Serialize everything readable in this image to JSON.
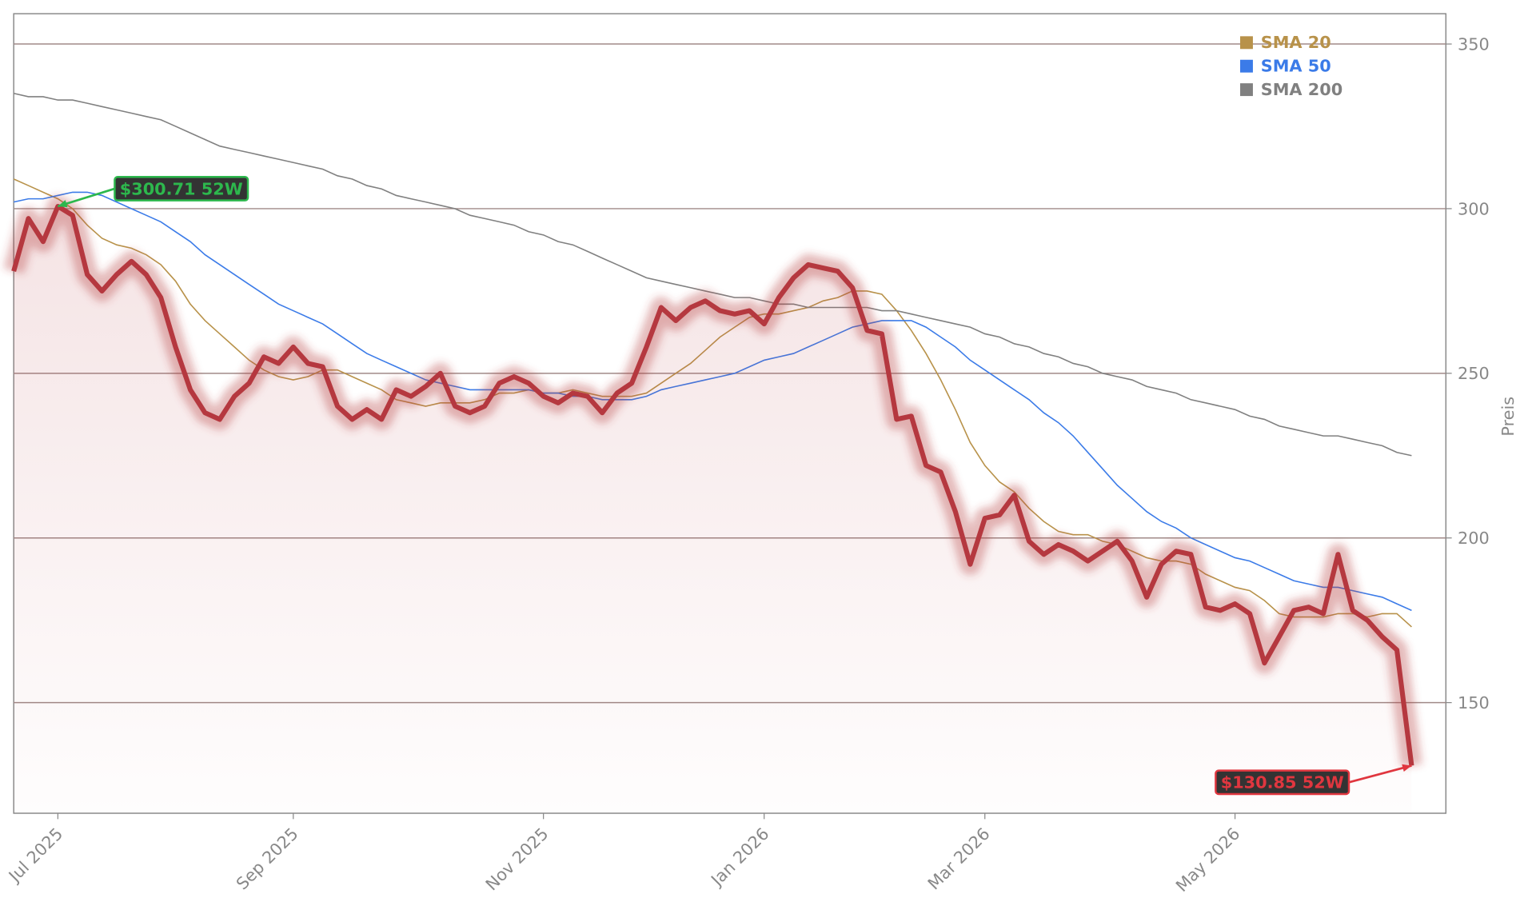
{
  "chart_data": {
    "type": "line",
    "y_label": "Preis",
    "ylim": [
      116.4,
      359.2
    ],
    "yticks": [
      150,
      200,
      250,
      300,
      350
    ],
    "grid": true,
    "legend": "upper-right",
    "categories": [
      null,
      null,
      null,
      "Jul 2025",
      null,
      null,
      null,
      null,
      null,
      null,
      null,
      null,
      null,
      null,
      null,
      null,
      null,
      null,
      null,
      "Sep 2025",
      null,
      null,
      null,
      null,
      null,
      null,
      null,
      null,
      null,
      null,
      null,
      null,
      null,
      null,
      null,
      null,
      "Nov 2025",
      null,
      null,
      null,
      null,
      null,
      null,
      null,
      null,
      null,
      null,
      null,
      null,
      null,
      null,
      "Jan 2026",
      null,
      null,
      null,
      null,
      null,
      null,
      null,
      null,
      null,
      null,
      null,
      null,
      null,
      null,
      "Mar 2026",
      null,
      null,
      null,
      null,
      null,
      null,
      null,
      null,
      null,
      null,
      null,
      null,
      null,
      null,
      null,
      null,
      "May 2026",
      null,
      null,
      null,
      null,
      null,
      null,
      null,
      null,
      null,
      null,
      null,
      null
    ],
    "series": [
      {
        "color": "#b5383f",
        "fill": true,
        "values": [
          281,
          297,
          290,
          300.71,
          298,
          280,
          275,
          280,
          284,
          280,
          273,
          258,
          245,
          238,
          236,
          243,
          247,
          255,
          253,
          258,
          253,
          252,
          240,
          236,
          239,
          236,
          245,
          243,
          246,
          250,
          240,
          238,
          240,
          247,
          249,
          247,
          243,
          241,
          244,
          243,
          238,
          244,
          247,
          258,
          270,
          266,
          270,
          272,
          269,
          268,
          269,
          265,
          273,
          279,
          283,
          282,
          281,
          276,
          263,
          262,
          236,
          237,
          222,
          220,
          208,
          192,
          206,
          207,
          213,
          199,
          195,
          198,
          196,
          193,
          196,
          199,
          193,
          182,
          192,
          196,
          195,
          179,
          178,
          180,
          177,
          162,
          170,
          178,
          179,
          177,
          195,
          178,
          175,
          170,
          166,
          130.85
        ]
      },
      {
        "name": "SMA 20",
        "color": "#b8924a",
        "values": [
          309,
          307,
          305,
          303,
          300,
          295,
          291,
          289,
          288,
          286,
          283,
          278,
          271,
          266,
          262,
          258,
          254,
          251,
          249,
          248,
          249,
          251,
          251,
          249,
          247,
          245,
          242,
          241,
          240,
          241,
          241,
          241,
          242,
          244,
          244,
          245,
          244,
          244,
          245,
          244,
          243,
          243,
          243,
          244,
          247,
          250,
          253,
          257,
          261,
          264,
          267,
          268,
          268,
          269,
          270,
          272,
          273,
          275,
          275,
          274,
          269,
          263,
          256,
          248,
          239,
          229,
          222,
          217,
          214,
          209,
          205,
          202,
          201,
          201,
          199,
          198,
          196,
          194,
          193,
          193,
          192,
          189,
          187,
          185,
          184,
          181,
          177,
          176,
          176,
          176,
          177,
          177,
          176,
          177,
          177,
          173
        ]
      },
      {
        "name": "SMA 50",
        "color": "#3b7be8",
        "values": [
          302,
          303,
          303,
          304,
          305,
          305,
          304,
          302,
          300,
          298,
          296,
          293,
          290,
          286,
          283,
          280,
          277,
          274,
          271,
          269,
          267,
          265,
          262,
          259,
          256,
          254,
          252,
          250,
          248,
          247,
          246,
          245,
          245,
          245,
          245,
          245,
          244,
          244,
          243,
          243,
          242,
          242,
          242,
          243,
          245,
          246,
          247,
          248,
          249,
          250,
          252,
          254,
          255,
          256,
          258,
          260,
          262,
          264,
          265,
          266,
          266,
          266,
          264,
          261,
          258,
          254,
          251,
          248,
          245,
          242,
          238,
          235,
          231,
          226,
          221,
          216,
          212,
          208,
          205,
          203,
          200,
          198,
          196,
          194,
          193,
          191,
          189,
          187,
          186,
          185,
          185,
          184,
          183,
          182,
          180,
          178
        ]
      },
      {
        "name": "SMA 200",
        "color": "#808080",
        "values": [
          335,
          334,
          334,
          333,
          333,
          332,
          331,
          330,
          329,
          328,
          327,
          325,
          323,
          321,
          319,
          318,
          317,
          316,
          315,
          314,
          313,
          312,
          310,
          309,
          307,
          306,
          304,
          303,
          302,
          301,
          300,
          298,
          297,
          296,
          295,
          293,
          292,
          290,
          289,
          287,
          285,
          283,
          281,
          279,
          278,
          277,
          276,
          275,
          274,
          273,
          273,
          272,
          271,
          271,
          270,
          270,
          270,
          270,
          270,
          269,
          269,
          268,
          267,
          266,
          265,
          264,
          262,
          261,
          259,
          258,
          256,
          255,
          253,
          252,
          250,
          249,
          248,
          246,
          245,
          244,
          242,
          241,
          240,
          239,
          237,
          236,
          234,
          233,
          232,
          231,
          231,
          230,
          229,
          228,
          226,
          225
        ]
      }
    ],
    "annotations": [
      {
        "text": "$300.71 52W",
        "value": 300.71,
        "color": "#2db84d"
      },
      {
        "text": "$130.85 52W",
        "value": 130.85,
        "color": "#e0363f"
      }
    ]
  }
}
